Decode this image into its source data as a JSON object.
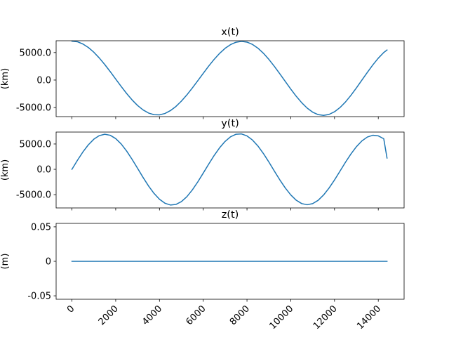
{
  "chart_data": [
    {
      "type": "line",
      "title": "x(t)",
      "ylabel": "(km)",
      "xlim": [
        -723,
        15180
      ],
      "ylim": [
        -6650,
        7150
      ],
      "yticks": [
        5000,
        0,
        -5000
      ],
      "ytick_labels": [
        "5000.0",
        "0.0",
        "-5000.0"
      ],
      "x_tick_labels_visible": false,
      "series": [
        {
          "color": "#1f77b4",
          "x": [
            0,
            250,
            500,
            750,
            1000,
            1250,
            1500,
            1750,
            2000,
            2250,
            2500,
            2750,
            3000,
            3250,
            3500,
            3750,
            4000,
            4250,
            4500,
            4750,
            5000,
            5250,
            5500,
            5750,
            6000,
            6250,
            6500,
            6750,
            7000,
            7250,
            7500,
            7750,
            8000,
            8250,
            8500,
            8750,
            9000,
            9250,
            9500,
            9750,
            10000,
            10250,
            10500,
            10750,
            11000,
            11250,
            11500,
            11750,
            12000,
            12250,
            12500,
            12750,
            13000,
            13250,
            13500,
            13750,
            14000,
            14250,
            14400
          ],
          "y": [
            7080,
            6960,
            6560,
            5920,
            5060,
            4010,
            2820,
            1530,
            180,
            -1160,
            -2450,
            -3620,
            -4630,
            -5430,
            -6000,
            -6300,
            -6330,
            -6080,
            -5560,
            -4810,
            -3840,
            -2710,
            -1450,
            -120,
            1220,
            2540,
            3770,
            4860,
            5770,
            6450,
            6880,
            7030,
            6900,
            6480,
            5800,
            4880,
            3760,
            2490,
            1130,
            -260,
            -1640,
            -2950,
            -4120,
            -5100,
            -5840,
            -6290,
            -6430,
            -6250,
            -5770,
            -5000,
            -3990,
            -2780,
            -1430,
            -20,
            1390,
            2750,
            3980,
            5010,
            5470
          ]
        }
      ]
    },
    {
      "type": "line",
      "title": "y(t)",
      "ylabel": "(km)",
      "xlim": [
        -723,
        15180
      ],
      "ylim": [
        -7620,
        7350
      ],
      "yticks": [
        5000,
        0,
        -5000
      ],
      "ytick_labels": [
        "5000.0",
        "0.0",
        "-5000.0"
      ],
      "x_tick_labels_visible": false,
      "series": [
        {
          "color": "#1f77b4",
          "x": [
            0,
            250,
            500,
            750,
            1000,
            1250,
            1500,
            1750,
            2000,
            2250,
            2500,
            2750,
            3000,
            3250,
            3500,
            3750,
            4000,
            4250,
            4500,
            4750,
            5000,
            5250,
            5500,
            5750,
            6000,
            6250,
            6500,
            6750,
            7000,
            7250,
            7500,
            7750,
            8000,
            8250,
            8500,
            8750,
            9000,
            9250,
            9500,
            9750,
            10000,
            10250,
            10500,
            10750,
            11000,
            11250,
            11500,
            11750,
            12000,
            12250,
            12500,
            12750,
            13000,
            13250,
            13500,
            13750,
            14000,
            14250,
            14400
          ],
          "y": [
            0,
            1770,
            3420,
            4840,
            5940,
            6650,
            6920,
            6720,
            6060,
            5000,
            3600,
            1960,
            190,
            -1600,
            -3280,
            -4750,
            -5910,
            -6690,
            -7040,
            -6930,
            -6380,
            -5410,
            -4080,
            -2490,
            -750,
            1030,
            2740,
            4260,
            5510,
            6420,
            6920,
            6980,
            6590,
            5780,
            4600,
            3120,
            1440,
            -340,
            -2080,
            -3680,
            -5050,
            -6100,
            -6760,
            -6990,
            -6770,
            -6120,
            -5070,
            -3700,
            -2100,
            -360,
            1390,
            3030,
            4460,
            5600,
            6370,
            6720,
            6600,
            6030,
            2220
          ]
        }
      ]
    },
    {
      "type": "line",
      "title": "z(t)",
      "ylabel": "(m)",
      "xlim": [
        -723,
        15180
      ],
      "ylim": [
        -0.055,
        0.055
      ],
      "yticks": [
        0.05,
        0,
        -0.05
      ],
      "ytick_labels": [
        "0.05",
        "0",
        "-0.05"
      ],
      "xticks": [
        0,
        2000,
        4000,
        6000,
        8000,
        10000,
        12000,
        14000
      ],
      "xtick_labels": [
        "0",
        "2000",
        "4000",
        "6000",
        "8000",
        "10000",
        "12000",
        "14000"
      ],
      "x_tick_labels_visible": true,
      "series": [
        {
          "color": "#1f77b4",
          "x": [
            0,
            14400
          ],
          "y": [
            0,
            0
          ]
        }
      ]
    }
  ]
}
